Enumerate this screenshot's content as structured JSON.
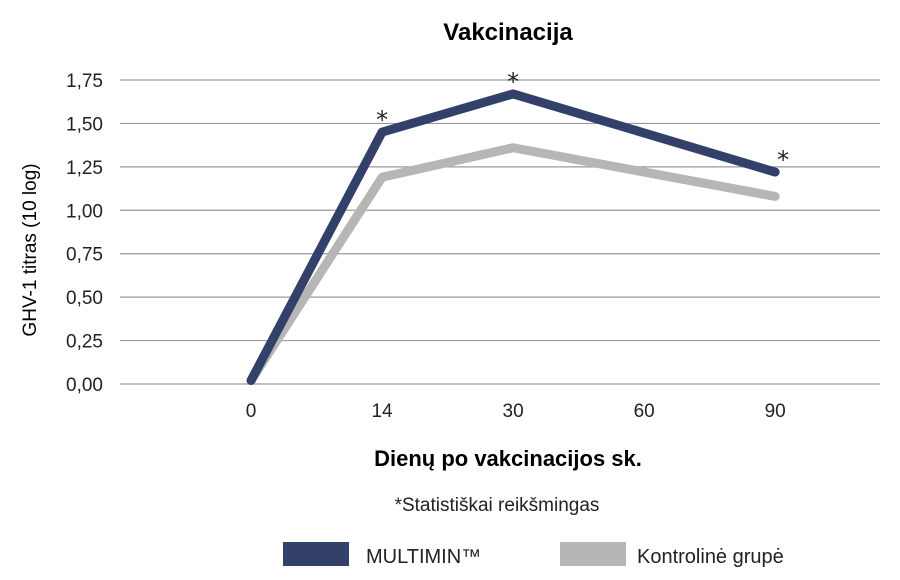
{
  "chart_data": {
    "type": "line",
    "title": "Vakcinacija",
    "xlabel": "Dienų po vakcinacijos sk.",
    "ylabel": "GHV-1 titras (10 log)",
    "categories": [
      "0",
      "14",
      "30",
      "60",
      "90"
    ],
    "x": [
      0,
      1,
      2,
      3,
      4
    ],
    "xlim": [
      -1,
      4.8
    ],
    "ylim": [
      0,
      1.75
    ],
    "yticks": [
      "0,00",
      "0,25",
      "0,50",
      "0,75",
      "1,00",
      "1,25",
      "1,50",
      "1,75"
    ],
    "ytick_values": [
      0,
      0.25,
      0.5,
      0.75,
      1.0,
      1.25,
      1.5,
      1.75
    ],
    "grid": true,
    "footnote": "*Statistiškai reikšmingas",
    "legend_position": "bottom",
    "series": [
      {
        "name": "MULTIMIN™",
        "color": "#33406a",
        "points": [
          [
            0,
            0.02
          ],
          [
            1,
            1.45
          ],
          [
            2,
            1.67
          ],
          [
            4,
            1.22
          ]
        ],
        "markers": [
          {
            "x": 1,
            "y": 1.45,
            "text": "*"
          },
          {
            "x": 2,
            "y": 1.67,
            "text": "*"
          },
          {
            "x": 4,
            "y": 1.22,
            "text": "*"
          }
        ]
      },
      {
        "name": "Kontrolinė grupė",
        "color": "#b5b6b5",
        "points": [
          [
            0,
            0.02
          ],
          [
            1,
            1.19
          ],
          [
            2,
            1.36
          ],
          [
            4,
            1.08
          ]
        ],
        "markers": []
      }
    ]
  }
}
